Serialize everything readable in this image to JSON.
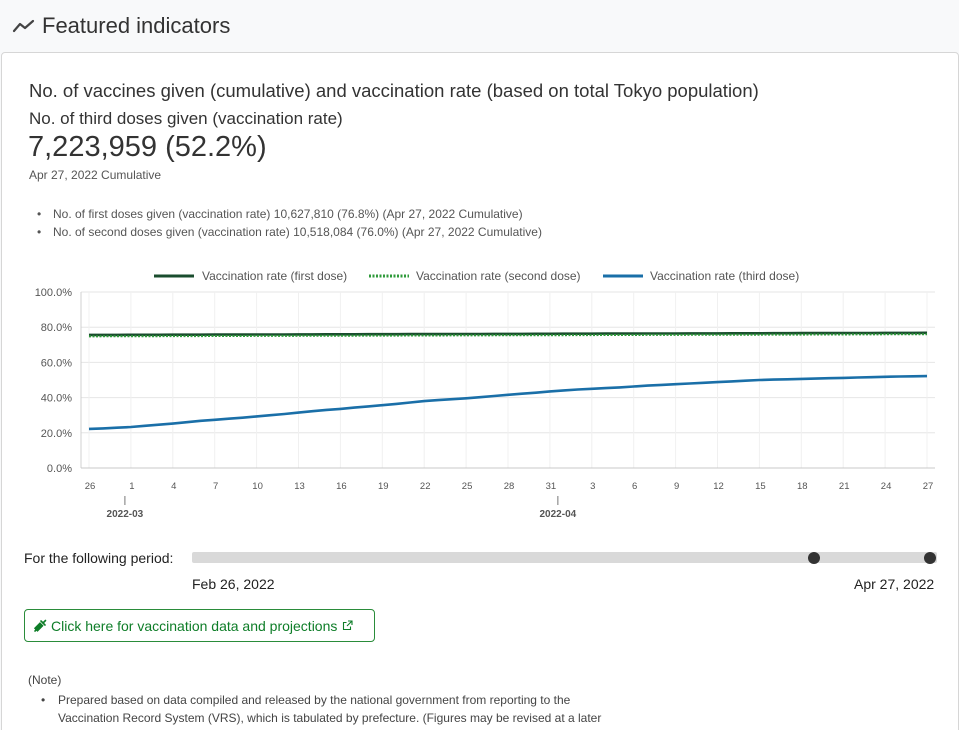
{
  "header": {
    "title": "Featured indicators",
    "icon": "trend-line-icon"
  },
  "card": {
    "title": "No. of vaccines given (cumulative) and vaccination rate (based on total Tokyo population)",
    "subtitle": "No. of third doses given (vaccination rate)",
    "big_value": "7,223,959 (52.2%)",
    "as_of": "Apr 27, 2022 Cumulative",
    "summary": [
      "No. of first doses given (vaccination rate) 10,627,810 (76.8%)  (Apr 27, 2022 Cumulative)",
      "No. of second doses given (vaccination rate) 10,518,084 (76.0%)  (Apr 27, 2022 Cumulative)"
    ]
  },
  "chart_data": {
    "type": "line",
    "x": [
      "2022-02-26",
      "2022-02-27",
      "2022-02-28",
      "2022-03-01",
      "2022-03-02",
      "2022-03-03",
      "2022-03-04",
      "2022-03-05",
      "2022-03-06",
      "2022-03-07",
      "2022-03-08",
      "2022-03-09",
      "2022-03-10",
      "2022-03-11",
      "2022-03-12",
      "2022-03-13",
      "2022-03-14",
      "2022-03-15",
      "2022-03-16",
      "2022-03-17",
      "2022-03-18",
      "2022-03-19",
      "2022-03-20",
      "2022-03-21",
      "2022-03-22",
      "2022-03-23",
      "2022-03-24",
      "2022-03-25",
      "2022-03-26",
      "2022-03-27",
      "2022-03-28",
      "2022-03-29",
      "2022-03-30",
      "2022-03-31",
      "2022-04-01",
      "2022-04-02",
      "2022-04-03",
      "2022-04-04",
      "2022-04-05",
      "2022-04-06",
      "2022-04-07",
      "2022-04-08",
      "2022-04-09",
      "2022-04-10",
      "2022-04-11",
      "2022-04-12",
      "2022-04-13",
      "2022-04-14",
      "2022-04-15",
      "2022-04-16",
      "2022-04-17",
      "2022-04-18",
      "2022-04-19",
      "2022-04-20",
      "2022-04-21",
      "2022-04-22",
      "2022-04-23",
      "2022-04-24",
      "2022-04-25",
      "2022-04-26",
      "2022-04-27"
    ],
    "x_tick_labels": [
      "26",
      "1",
      "4",
      "7",
      "10",
      "13",
      "16",
      "19",
      "22",
      "25",
      "28",
      "31",
      "3",
      "6",
      "9",
      "12",
      "15",
      "18",
      "21",
      "24",
      "27"
    ],
    "month_labels": [
      {
        "label": "2022-03",
        "date": "2022-03-01"
      },
      {
        "label": "2022-04",
        "date": "2022-04-01"
      }
    ],
    "ylim": [
      0,
      100
    ],
    "y_tick_labels": [
      "0.0%",
      "20.0%",
      "40.0%",
      "60.0%",
      "80.0%",
      "100.0%"
    ],
    "grid": true,
    "legend_position": "top",
    "series": [
      {
        "name": "Vaccination rate (first dose)",
        "color": "#1a4d2e",
        "style": "solid",
        "start": 75.6,
        "end": 76.8
      },
      {
        "name": "Vaccination rate (second dose)",
        "color": "#2e9a3a",
        "style": "dotted",
        "start": 74.8,
        "end": 76.0
      },
      {
        "name": "Vaccination rate (third dose)",
        "color": "#1a6fa8",
        "style": "solid",
        "values": [
          22.2,
          22.5,
          22.9,
          23.3,
          24.0,
          24.6,
          25.2,
          26.0,
          26.8,
          27.4,
          28.0,
          28.6,
          29.3,
          30.0,
          30.7,
          31.5,
          32.3,
          33.0,
          33.6,
          34.3,
          35.0,
          35.7,
          36.4,
          37.2,
          38.0,
          38.6,
          39.1,
          39.6,
          40.2,
          40.9,
          41.6,
          42.2,
          42.8,
          43.5,
          44.1,
          44.6,
          45.0,
          45.4,
          45.8,
          46.3,
          46.8,
          47.2,
          47.6,
          48.0,
          48.4,
          48.8,
          49.2,
          49.6,
          50.0,
          50.2,
          50.4,
          50.6,
          50.8,
          51.0,
          51.2,
          51.4,
          51.6,
          51.8,
          52.0,
          52.1,
          52.2
        ]
      }
    ]
  },
  "period": {
    "label": "For the following period:",
    "start_date": "Feb 26, 2022",
    "end_date": "Apr 27, 2022",
    "slider_start_fraction": 0.836,
    "slider_end_fraction": 1.0
  },
  "link_button": {
    "label": "Click here for vaccination data and projections",
    "icon": "syringe-icon",
    "external_icon": "external-link-icon"
  },
  "note": {
    "title": "(Note)",
    "items": [
      "Prepared based on data compiled and released by the national government from reporting to the Vaccination Record System (VRS), which is tabulated by prefecture. (Figures may be revised at a later date)"
    ]
  }
}
